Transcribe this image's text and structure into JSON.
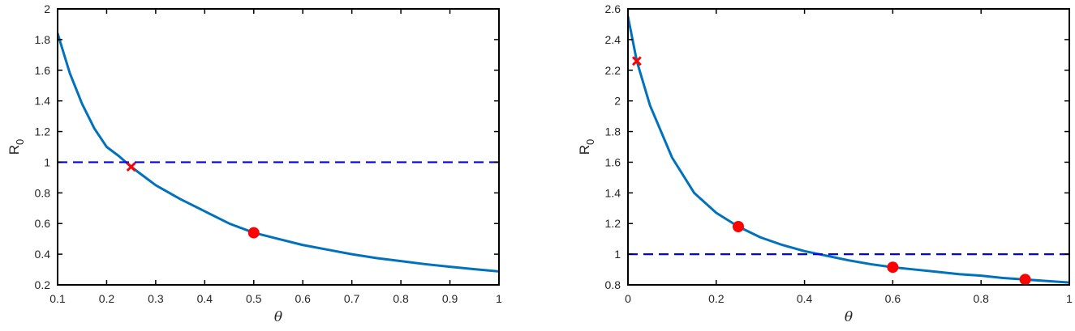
{
  "chart_data": [
    {
      "type": "line",
      "title": "",
      "xlabel": "θ",
      "ylabel": "R",
      "ylabel_subscript": "0",
      "xlim": [
        0.1,
        1
      ],
      "ylim": [
        0.2,
        2
      ],
      "xticks": [
        "0.1",
        "0.2",
        "0.3",
        "0.4",
        "0.5",
        "0.6",
        "0.7",
        "0.8",
        "0.9",
        "1"
      ],
      "yticks": [
        "0.2",
        "0.4",
        "0.6",
        "0.8",
        "1",
        "1.2",
        "1.4",
        "1.6",
        "1.8",
        "2"
      ],
      "grid": false,
      "series": [
        {
          "style": "solid",
          "color": "#0072bd",
          "x": [
            0.1,
            0.125,
            0.15,
            0.175,
            0.2,
            0.225,
            0.25,
            0.275,
            0.3,
            0.35,
            0.4,
            0.45,
            0.5,
            0.55,
            0.6,
            0.65,
            0.7,
            0.75,
            0.8,
            0.85,
            0.9,
            0.95,
            1.0
          ],
          "y": [
            1.84,
            1.58,
            1.38,
            1.22,
            1.1,
            1.04,
            0.97,
            0.91,
            0.85,
            0.76,
            0.68,
            0.6,
            0.54,
            0.5,
            0.46,
            0.43,
            0.4,
            0.375,
            0.355,
            0.335,
            0.318,
            0.302,
            0.288
          ]
        },
        {
          "style": "dashed",
          "color": "#0000ff",
          "x": [
            0.1,
            1.0
          ],
          "y": [
            1,
            1
          ]
        }
      ],
      "markers": [
        {
          "shape": "cross",
          "color": "#ff0000",
          "x": 0.25,
          "y": 0.97
        },
        {
          "shape": "circle",
          "color": "#ff0000",
          "x": 0.5,
          "y": 0.54
        }
      ]
    },
    {
      "type": "line",
      "title": "",
      "xlabel": "θ",
      "ylabel": "R",
      "ylabel_subscript": "0",
      "xlim": [
        0,
        1
      ],
      "ylim": [
        0.8,
        2.6
      ],
      "xticks": [
        "0",
        "0.2",
        "0.4",
        "0.6",
        "0.8",
        "1"
      ],
      "yticks": [
        "0.8",
        "1",
        "1.2",
        "1.4",
        "1.6",
        "1.8",
        "2",
        "2.2",
        "2.4",
        "2.6"
      ],
      "grid": false,
      "series": [
        {
          "style": "solid",
          "color": "#0072bd",
          "x": [
            0.0,
            0.02,
            0.05,
            0.1,
            0.15,
            0.2,
            0.25,
            0.3,
            0.35,
            0.4,
            0.45,
            0.5,
            0.55,
            0.6,
            0.65,
            0.7,
            0.75,
            0.8,
            0.85,
            0.9,
            0.95,
            1.0
          ],
          "y": [
            2.55,
            2.26,
            1.97,
            1.63,
            1.4,
            1.27,
            1.18,
            1.11,
            1.06,
            1.02,
            0.99,
            0.96,
            0.935,
            0.915,
            0.9,
            0.885,
            0.87,
            0.86,
            0.845,
            0.835,
            0.825,
            0.815
          ]
        },
        {
          "style": "dashed",
          "color": "#0000ff",
          "x": [
            0,
            1
          ],
          "y": [
            1,
            1
          ]
        }
      ],
      "markers": [
        {
          "shape": "cross",
          "color": "#ff0000",
          "x": 0.02,
          "y": 2.26
        },
        {
          "shape": "circle",
          "color": "#ff0000",
          "x": 0.25,
          "y": 1.18
        },
        {
          "shape": "circle",
          "color": "#ff0000",
          "x": 0.6,
          "y": 0.915
        },
        {
          "shape": "circle",
          "color": "#ff0000",
          "x": 0.9,
          "y": 0.835
        }
      ]
    }
  ]
}
